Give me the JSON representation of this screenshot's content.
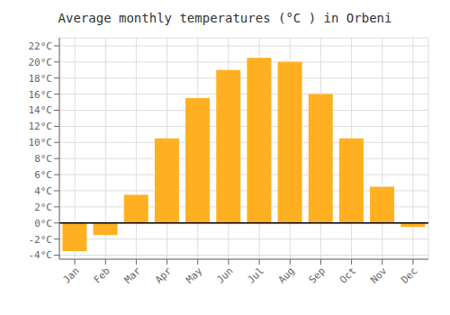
{
  "chart_data": {
    "type": "bar",
    "title": "Average monthly temperatures (°C ) in Orbeni",
    "categories": [
      "Jan",
      "Feb",
      "Mar",
      "Apr",
      "May",
      "Jun",
      "Jul",
      "Aug",
      "Sep",
      "Oct",
      "Nov",
      "Dec"
    ],
    "values": [
      -3.5,
      -1.5,
      3.5,
      10.5,
      15.5,
      19.0,
      20.5,
      20.0,
      16.0,
      10.5,
      4.5,
      -0.5
    ],
    "color": "#FFB020",
    "ylim": [
      -4.5,
      23.0
    ],
    "yticks": [
      {
        "value": -4,
        "label": "-4°C"
      },
      {
        "value": -2,
        "label": "-2°C"
      },
      {
        "value": 0,
        "label": "0°C"
      },
      {
        "value": 2,
        "label": "2°C"
      },
      {
        "value": 4,
        "label": "4°C"
      },
      {
        "value": 6,
        "label": "6°C"
      },
      {
        "value": 8,
        "label": "8°C"
      },
      {
        "value": 10,
        "label": "10°C"
      },
      {
        "value": 12,
        "label": "12°C"
      },
      {
        "value": 14,
        "label": "14°C"
      },
      {
        "value": 16,
        "label": "16°C"
      },
      {
        "value": 18,
        "label": "18°C"
      },
      {
        "value": 20,
        "label": "20°C"
      },
      {
        "value": 22,
        "label": "22°C"
      }
    ],
    "grid": true
  }
}
